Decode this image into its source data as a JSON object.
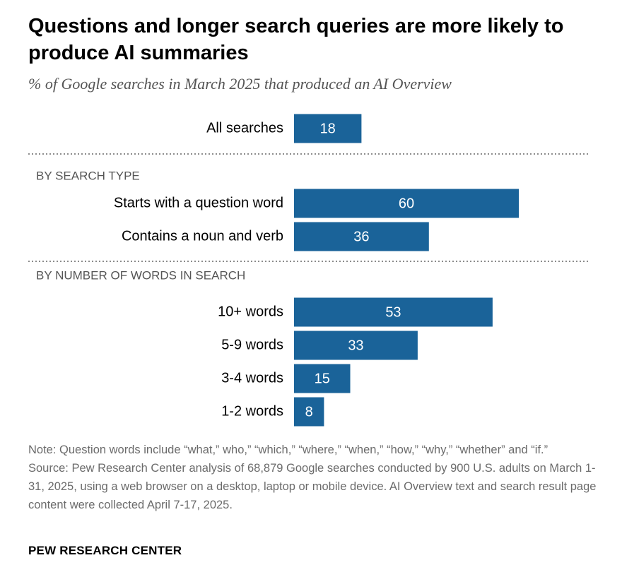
{
  "title": "Questions and longer search queries are more likely to produce AI summaries",
  "subtitle": "% of Google searches in March 2025 that produced an AI Overview",
  "chart_data": {
    "type": "bar",
    "orientation": "horizontal",
    "groups": [
      {
        "heading": "",
        "items": [
          {
            "label": "All searches",
            "value": 18
          }
        ]
      },
      {
        "heading": "BY SEARCH TYPE",
        "items": [
          {
            "label": "Starts with a question word",
            "value": 60
          },
          {
            "label": "Contains a noun and verb",
            "value": 36
          }
        ]
      },
      {
        "heading": "BY NUMBER OF WORDS IN SEARCH",
        "items": [
          {
            "label": "10+ words",
            "value": 53
          },
          {
            "label": "5-9 words",
            "value": 33
          },
          {
            "label": "3-4 words",
            "value": 15
          },
          {
            "label": "1-2 words",
            "value": 8
          }
        ]
      }
    ],
    "bar_color": "#1a6399",
    "label_color": "#ffffff"
  },
  "note": "Note: Question words include “what,” who,” “which,” “where,” “when,” “how,” “why,” “whether” and “if.”",
  "source": "Source: Pew Research Center analysis of 68,879 Google searches conducted by 900 U.S. adults on March 1-31, 2025, using a web browser on a desktop, laptop or mobile device. AI Overview text and search result page content were collected April 7-17, 2025.",
  "brand": "PEW RESEARCH CENTER"
}
